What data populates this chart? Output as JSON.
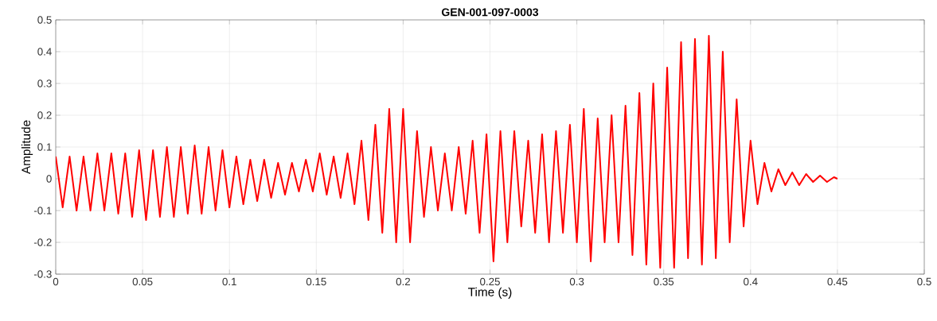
{
  "chart_data": {
    "type": "line",
    "title": "GEN-001-097-0003",
    "xlabel": "Time (s)",
    "ylabel": "Amplitude",
    "x": [
      0,
      0.004,
      0.008,
      0.012,
      0.016,
      0.02,
      0.024,
      0.028,
      0.032,
      0.036,
      0.04,
      0.044,
      0.048,
      0.052,
      0.056,
      0.06,
      0.064,
      0.068,
      0.072,
      0.076,
      0.08,
      0.084,
      0.088,
      0.092,
      0.096,
      0.1,
      0.104,
      0.108,
      0.112,
      0.116,
      0.12,
      0.124,
      0.128,
      0.132,
      0.136,
      0.14,
      0.144,
      0.148,
      0.152,
      0.156,
      0.16,
      0.164,
      0.168,
      0.172,
      0.176,
      0.18,
      0.184,
      0.188,
      0.192,
      0.196,
      0.2,
      0.204,
      0.208,
      0.212,
      0.216,
      0.22,
      0.224,
      0.228,
      0.232,
      0.236,
      0.24,
      0.244,
      0.248,
      0.252,
      0.256,
      0.26,
      0.264,
      0.268,
      0.272,
      0.276,
      0.28,
      0.284,
      0.288,
      0.292,
      0.296,
      0.3,
      0.304,
      0.308,
      0.312,
      0.316,
      0.32,
      0.324,
      0.328,
      0.332,
      0.336,
      0.34,
      0.344,
      0.348,
      0.352,
      0.356,
      0.36,
      0.364,
      0.368,
      0.372,
      0.376,
      0.38,
      0.384,
      0.388,
      0.392,
      0.396,
      0.4,
      0.404,
      0.408,
      0.412,
      0.416,
      0.42,
      0.424,
      0.428,
      0.432,
      0.436,
      0.44,
      0.444,
      0.448,
      0.45
    ],
    "series": [
      {
        "color": "#ff0000",
        "values": [
          0.07,
          -0.09,
          0.07,
          -0.1,
          0.07,
          -0.1,
          0.08,
          -0.1,
          0.08,
          -0.11,
          0.08,
          -0.12,
          0.09,
          -0.13,
          0.09,
          -0.12,
          0.1,
          -0.12,
          0.1,
          -0.11,
          0.105,
          -0.11,
          0.1,
          -0.1,
          0.09,
          -0.09,
          0.07,
          -0.08,
          0.06,
          -0.07,
          0.06,
          -0.06,
          0.05,
          -0.05,
          0.05,
          -0.04,
          0.06,
          -0.04,
          0.08,
          -0.05,
          0.07,
          -0.06,
          0.08,
          -0.08,
          0.12,
          -0.13,
          0.17,
          -0.17,
          0.22,
          -0.2,
          0.22,
          -0.2,
          0.15,
          -0.12,
          0.1,
          -0.1,
          0.08,
          -0.1,
          0.1,
          -0.11,
          0.12,
          -0.17,
          0.14,
          -0.26,
          0.15,
          -0.2,
          0.15,
          -0.15,
          0.12,
          -0.17,
          0.14,
          -0.2,
          0.15,
          -0.17,
          0.17,
          -0.2,
          0.22,
          -0.26,
          0.19,
          -0.2,
          0.2,
          -0.2,
          0.23,
          -0.24,
          0.27,
          -0.27,
          0.3,
          -0.28,
          0.35,
          -0.28,
          0.43,
          -0.25,
          0.44,
          -0.27,
          0.45,
          -0.25,
          0.4,
          -0.2,
          0.25,
          -0.15,
          0.12,
          -0.08,
          0.05,
          -0.04,
          0.03,
          -0.02,
          0.02,
          -0.02,
          0.015,
          -0.01,
          0.01,
          -0.01,
          0.005,
          0
        ]
      }
    ],
    "xlim": [
      0,
      0.5
    ],
    "ylim": [
      -0.3,
      0.5
    ],
    "xticks": [
      0,
      0.05,
      0.1,
      0.15,
      0.2,
      0.25,
      0.3,
      0.35,
      0.4,
      0.45,
      0.5
    ],
    "yticks": [
      -0.3,
      -0.2,
      -0.1,
      0,
      0.1,
      0.2,
      0.3,
      0.4,
      0.5
    ],
    "grid": true,
    "marker": "none",
    "line_style": "solid"
  }
}
